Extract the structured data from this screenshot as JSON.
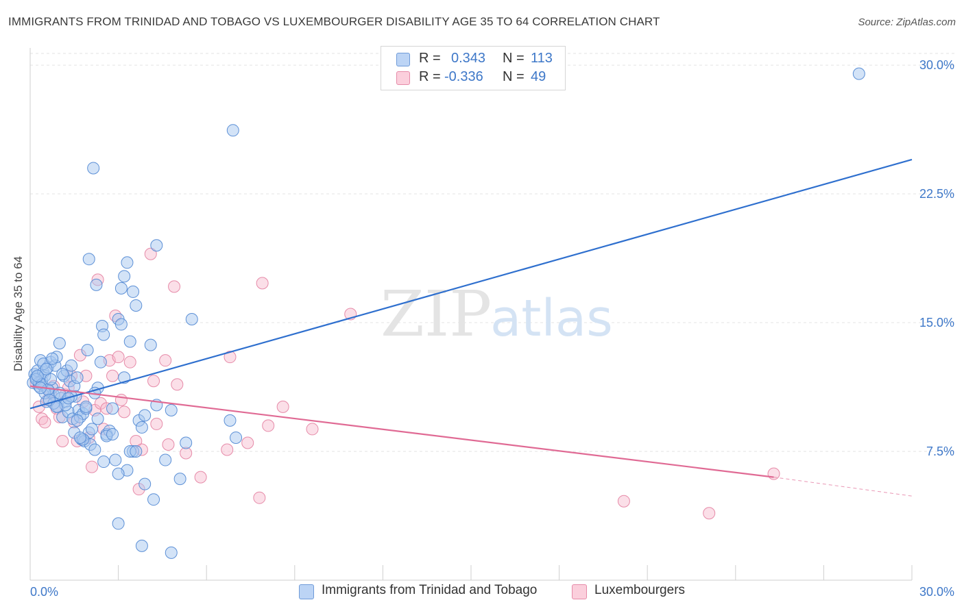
{
  "title": "IMMIGRANTS FROM TRINIDAD AND TOBAGO VS LUXEMBOURGER DISABILITY AGE 35 TO 64 CORRELATION CHART",
  "source": "Source: ZipAtlas.com",
  "watermark": {
    "zip": "ZIP",
    "atlas": "atlas"
  },
  "colors": {
    "blue_fill": "#a8c8f0",
    "blue_stroke": "#5b8fd6",
    "blue_line": "#2e6fce",
    "pink_fill": "#f6b9cc",
    "pink_stroke": "#e68aa8",
    "pink_line": "#e06a94",
    "tick_text": "#3d77c8",
    "grid": "#e3e3e3"
  },
  "legend": {
    "rows": [
      {
        "r_label": "R =",
        "r_value": "0.343",
        "n_label": "N =",
        "n_value": "113"
      },
      {
        "r_label": "R =",
        "r_value": "-0.336",
        "n_label": "N =",
        "n_value": "49"
      }
    ]
  },
  "bottom_legend": [
    {
      "label": "Immigrants from Trinidad and Tobago"
    },
    {
      "label": "Luxembourgers"
    }
  ],
  "chart_data": {
    "type": "scatter",
    "title": "IMMIGRANTS FROM TRINIDAD AND TOBAGO VS LUXEMBOURGER DISABILITY AGE 35 TO 64 CORRELATION CHART",
    "xlabel": "",
    "ylabel": "Disability Age 35 to 64",
    "xlim": [
      0,
      30
    ],
    "ylim": [
      0,
      31
    ],
    "x_tick_labels": [
      "0.0%",
      "30.0%"
    ],
    "y_ticks": [
      7.5,
      15.0,
      22.5,
      30.0
    ],
    "y_tick_labels": [
      "7.5%",
      "15.0%",
      "22.5%",
      "30.0%"
    ],
    "grid": "horizontal dashed",
    "series": [
      {
        "name": "Immigrants from Trinidad and Tobago",
        "color": "#a8c8f0",
        "trend": {
          "x": [
            0,
            30
          ],
          "y": [
            10.0,
            24.5
          ]
        },
        "points": [
          [
            0.1,
            11.5
          ],
          [
            0.15,
            12.0
          ],
          [
            0.2,
            11.8
          ],
          [
            0.25,
            12.2
          ],
          [
            0.3,
            11.3
          ],
          [
            0.35,
            12.8
          ],
          [
            0.4,
            11.6
          ],
          [
            0.45,
            12.1
          ],
          [
            0.5,
            11.9
          ],
          [
            0.55,
            10.4
          ],
          [
            0.6,
            12.4
          ],
          [
            0.65,
            11.0
          ],
          [
            0.7,
            12.7
          ],
          [
            0.75,
            11.2
          ],
          [
            0.8,
            10.8
          ],
          [
            0.85,
            12.5
          ],
          [
            0.9,
            13.0
          ],
          [
            0.95,
            10.1
          ],
          [
            1.0,
            13.8
          ],
          [
            1.05,
            10.6
          ],
          [
            1.1,
            9.5
          ],
          [
            1.15,
            11.9
          ],
          [
            1.2,
            10.4
          ],
          [
            1.25,
            12.2
          ],
          [
            1.3,
            9.8
          ],
          [
            1.35,
            11.6
          ],
          [
            1.4,
            12.5
          ],
          [
            1.45,
            9.4
          ],
          [
            1.5,
            11.3
          ],
          [
            1.55,
            10.7
          ],
          [
            1.6,
            11.8
          ],
          [
            1.65,
            9.9
          ],
          [
            1.7,
            9.5
          ],
          [
            1.75,
            8.2
          ],
          [
            1.8,
            9.7
          ],
          [
            1.85,
            8.1
          ],
          [
            1.9,
            10.0
          ],
          [
            1.95,
            13.4
          ],
          [
            2.0,
            8.6
          ],
          [
            2.05,
            7.9
          ],
          [
            2.1,
            8.8
          ],
          [
            2.2,
            7.6
          ],
          [
            2.3,
            11.2
          ],
          [
            2.4,
            12.7
          ],
          [
            2.45,
            14.8
          ],
          [
            2.5,
            14.3
          ],
          [
            2.6,
            8.5
          ],
          [
            2.7,
            8.7
          ],
          [
            2.8,
            10.0
          ],
          [
            2.9,
            7.0
          ],
          [
            3.0,
            15.2
          ],
          [
            3.1,
            14.9
          ],
          [
            3.2,
            11.8
          ],
          [
            3.3,
            6.4
          ],
          [
            3.4,
            13.9
          ],
          [
            3.5,
            7.5
          ],
          [
            3.7,
            9.3
          ],
          [
            3.8,
            8.9
          ],
          [
            3.9,
            5.6
          ],
          [
            4.1,
            13.7
          ],
          [
            4.2,
            4.7
          ],
          [
            4.3,
            10.2
          ],
          [
            4.6,
            7.0
          ],
          [
            4.8,
            9.9
          ],
          [
            5.1,
            5.9
          ],
          [
            5.3,
            8.0
          ],
          [
            5.5,
            15.2
          ],
          [
            6.8,
            9.3
          ],
          [
            6.9,
            26.2
          ],
          [
            7.0,
            8.3
          ],
          [
            2.15,
            24.0
          ],
          [
            2.0,
            18.7
          ],
          [
            3.2,
            17.7
          ],
          [
            3.1,
            17.0
          ],
          [
            3.5,
            16.8
          ],
          [
            3.6,
            16.0
          ],
          [
            4.3,
            19.5
          ],
          [
            2.25,
            17.2
          ],
          [
            3.3,
            18.5
          ],
          [
            3.0,
            3.3
          ],
          [
            3.8,
            2.0
          ],
          [
            4.8,
            1.6
          ],
          [
            0.3,
            11.5
          ],
          [
            0.2,
            11.7
          ],
          [
            0.4,
            11.4
          ],
          [
            0.5,
            10.9
          ],
          [
            0.6,
            11.1
          ],
          [
            0.7,
            11.7
          ],
          [
            0.8,
            10.3
          ],
          [
            1.0,
            10.9
          ],
          [
            1.2,
            10.2
          ],
          [
            1.4,
            10.7
          ],
          [
            1.6,
            9.3
          ],
          [
            1.8,
            8.2
          ],
          [
            1.9,
            10.1
          ],
          [
            2.2,
            10.9
          ],
          [
            2.3,
            9.4
          ],
          [
            2.5,
            6.9
          ],
          [
            2.6,
            8.4
          ],
          [
            2.8,
            8.5
          ],
          [
            3.0,
            6.2
          ],
          [
            3.4,
            7.5
          ],
          [
            3.6,
            7.5
          ],
          [
            3.9,
            9.6
          ],
          [
            0.25,
            11.9
          ],
          [
            0.35,
            11.2
          ],
          [
            0.45,
            12.6
          ],
          [
            0.55,
            12.3
          ],
          [
            0.65,
            10.5
          ],
          [
            0.75,
            12.9
          ],
          [
            0.9,
            10.1
          ],
          [
            1.1,
            12.0
          ],
          [
            1.3,
            10.6
          ],
          [
            1.5,
            8.6
          ],
          [
            1.7,
            8.3
          ],
          [
            28.2,
            29.5
          ]
        ]
      },
      {
        "name": "Luxembourgers",
        "color": "#f6b9cc",
        "trend": {
          "x": [
            0,
            25.3
          ],
          "y": [
            11.3,
            6.0
          ]
        },
        "trend_dashed": {
          "x": [
            25.3,
            30
          ],
          "y": [
            6.0,
            4.9
          ]
        },
        "points": [
          [
            0.2,
            11.5
          ],
          [
            0.3,
            10.1
          ],
          [
            0.4,
            9.4
          ],
          [
            0.5,
            9.2
          ],
          [
            0.6,
            10.5
          ],
          [
            0.7,
            10.9
          ],
          [
            0.8,
            11.3
          ],
          [
            0.9,
            10.0
          ],
          [
            1.0,
            9.5
          ],
          [
            1.1,
            8.1
          ],
          [
            1.2,
            10.8
          ],
          [
            1.3,
            11.2
          ],
          [
            1.4,
            11.9
          ],
          [
            1.5,
            9.2
          ],
          [
            1.6,
            8.1
          ],
          [
            1.7,
            13.1
          ],
          [
            1.8,
            10.4
          ],
          [
            1.9,
            11.9
          ],
          [
            2.0,
            8.3
          ],
          [
            2.1,
            6.6
          ],
          [
            2.2,
            9.9
          ],
          [
            2.3,
            17.5
          ],
          [
            2.4,
            10.3
          ],
          [
            2.5,
            8.8
          ],
          [
            2.6,
            10.0
          ],
          [
            2.7,
            12.8
          ],
          [
            2.8,
            11.9
          ],
          [
            2.9,
            15.4
          ],
          [
            3.0,
            13.0
          ],
          [
            3.1,
            10.5
          ],
          [
            3.2,
            9.8
          ],
          [
            3.4,
            12.7
          ],
          [
            3.6,
            8.1
          ],
          [
            3.7,
            5.3
          ],
          [
            3.8,
            7.6
          ],
          [
            4.1,
            19.0
          ],
          [
            4.2,
            11.6
          ],
          [
            4.3,
            9.1
          ],
          [
            4.6,
            12.8
          ],
          [
            4.7,
            7.9
          ],
          [
            4.9,
            17.1
          ],
          [
            5.0,
            11.4
          ],
          [
            5.3,
            7.4
          ],
          [
            5.8,
            6.0
          ],
          [
            6.7,
            7.6
          ],
          [
            6.8,
            13.0
          ],
          [
            7.4,
            8.0
          ],
          [
            7.9,
            17.3
          ],
          [
            7.8,
            4.8
          ],
          [
            8.1,
            9.0
          ],
          [
            8.6,
            10.1
          ],
          [
            9.6,
            8.8
          ],
          [
            10.9,
            15.5
          ],
          [
            20.2,
            4.6
          ],
          [
            23.1,
            3.9
          ],
          [
            25.3,
            6.2
          ]
        ]
      }
    ]
  }
}
